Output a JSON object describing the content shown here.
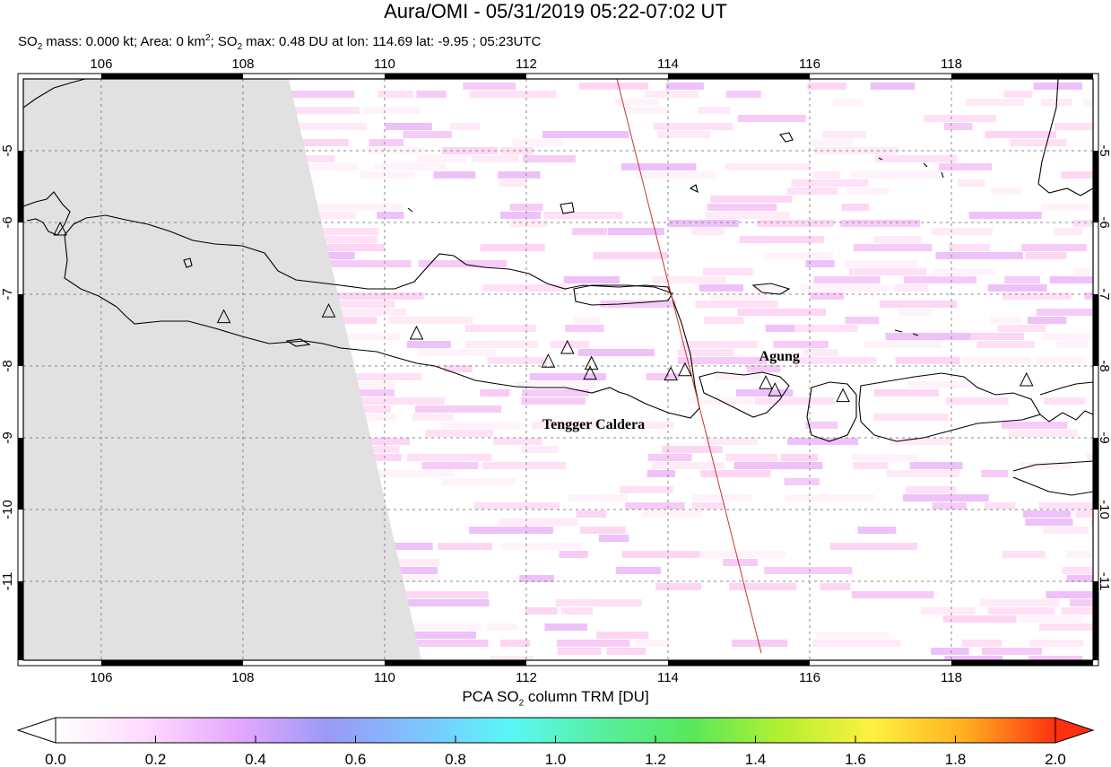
{
  "header": {
    "title": "Aura/OMI - 05/31/2019 05:22-07:02 UT",
    "subtitle_parts": [
      "SO",
      "2",
      " mass: 0.000 kt; Area: 0 km",
      "2",
      "; SO",
      "2",
      " max: 0.48 DU at lon: 114.69 lat: -9.95 ; 05:23UTC"
    ]
  },
  "map": {
    "lon_range": [
      104.9,
      120.0
    ],
    "lat_range": [
      -12.1,
      -4.0
    ],
    "lon_ticks": [
      "106",
      "108",
      "110",
      "112",
      "114",
      "116",
      "118"
    ],
    "lat_ticks": [
      "-5",
      "-6",
      "-7",
      "-8",
      "-9",
      "-10",
      "-11"
    ],
    "lon_tick_values": [
      106,
      108,
      110,
      112,
      114,
      116,
      118
    ],
    "lat_tick_values": [
      -5,
      -6,
      -7,
      -8,
      -9,
      -10,
      -11
    ],
    "grid": true,
    "no_data_color": "#e1e1e1",
    "overpass_line_color": "#c0392b",
    "volcano_labels": [
      {
        "name": "Tengger Caldera",
        "lon": 112.95,
        "lat": -7.94
      },
      {
        "name": "Agung",
        "lon": 115.51,
        "lat": -8.34
      }
    ],
    "volcanoes": [
      {
        "lon": 105.42,
        "lat": -6.1
      },
      {
        "lon": 107.73,
        "lat": -7.32
      },
      {
        "lon": 109.21,
        "lat": -7.24
      },
      {
        "lon": 110.45,
        "lat": -7.55
      },
      {
        "lon": 112.31,
        "lat": -7.94
      },
      {
        "lon": 112.58,
        "lat": -7.75
      },
      {
        "lon": 112.92,
        "lat": -7.97
      },
      {
        "lon": 112.9,
        "lat": -8.11
      },
      {
        "lon": 114.04,
        "lat": -8.12
      },
      {
        "lon": 114.24,
        "lat": -8.06
      },
      {
        "lon": 115.38,
        "lat": -8.24
      },
      {
        "lon": 115.51,
        "lat": -8.34
      },
      {
        "lon": 116.47,
        "lat": -8.42
      },
      {
        "lon": 119.06,
        "lat": -8.2
      }
    ]
  },
  "colorbar": {
    "title_parts": [
      "PCA SO",
      "2",
      " column TRM [DU]"
    ],
    "ticks": [
      "0.0",
      "0.2",
      "0.4",
      "0.6",
      "0.8",
      "1.0",
      "1.2",
      "1.4",
      "1.6",
      "1.8",
      "2.0"
    ],
    "min": 0.0,
    "max": 2.0,
    "colors": [
      "#ffffff",
      "#ffd9ff",
      "#e5a8ff",
      "#9a9af5",
      "#7ec3ff",
      "#5af7f7",
      "#56f0a0",
      "#58e85a",
      "#b5f030",
      "#fff040",
      "#ffb020",
      "#ff3010"
    ]
  }
}
